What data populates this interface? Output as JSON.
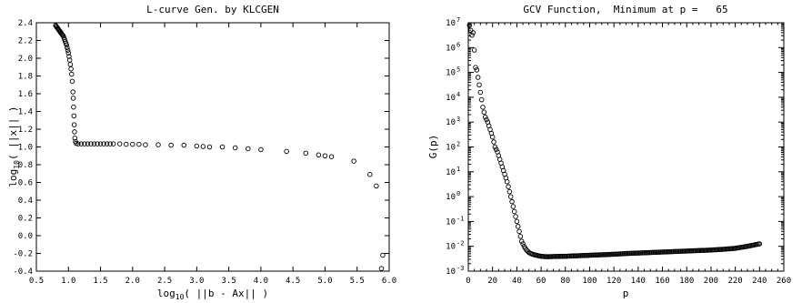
{
  "chart_data": [
    {
      "type": "scatter",
      "title": "L-curve Gen. by KLCGEN",
      "xlabel_prefix": "log",
      "xlabel_sub": "10",
      "xlabel_suffix": "( ||b - Ax|| )",
      "ylabel_prefix": "log",
      "ylabel_sub": "10",
      "ylabel_suffix": "( ||x|| )",
      "xlim": [
        0.5,
        6.0
      ],
      "ylim": [
        -0.4,
        2.4
      ],
      "x_ticks": [
        "0.5",
        "1.0",
        "1.5",
        "2.0",
        "2.5",
        "3.0",
        "3.5",
        "4.0",
        "4.5",
        "5.0",
        "5.5",
        "6.0"
      ],
      "y_ticks": [
        "-0.4",
        "-0.2",
        "0.0",
        "0.2",
        "0.4",
        "0.6",
        "0.8",
        "1.0",
        "1.2",
        "1.4",
        "1.6",
        "1.8",
        "2.0",
        "2.2",
        "2.4"
      ],
      "grid": false,
      "marker": "open-circle",
      "points": [
        [
          0.8,
          2.37
        ],
        [
          0.81,
          2.36
        ],
        [
          0.82,
          2.35
        ],
        [
          0.83,
          2.34
        ],
        [
          0.84,
          2.33
        ],
        [
          0.85,
          2.32
        ],
        [
          0.86,
          2.31
        ],
        [
          0.87,
          2.3
        ],
        [
          0.88,
          2.29
        ],
        [
          0.89,
          2.28
        ],
        [
          0.9,
          2.27
        ],
        [
          0.91,
          2.26
        ],
        [
          0.92,
          2.25
        ],
        [
          0.93,
          2.23
        ],
        [
          0.94,
          2.21
        ],
        [
          0.95,
          2.19
        ],
        [
          0.96,
          2.17
        ],
        [
          0.97,
          2.15
        ],
        [
          0.98,
          2.12
        ],
        [
          0.99,
          2.09
        ],
        [
          1.0,
          2.06
        ],
        [
          1.01,
          2.02
        ],
        [
          1.02,
          1.98
        ],
        [
          1.03,
          1.93
        ],
        [
          1.04,
          1.88
        ],
        [
          1.05,
          1.82
        ],
        [
          1.06,
          1.74
        ],
        [
          1.07,
          1.62
        ],
        [
          1.075,
          1.55
        ],
        [
          1.08,
          1.45
        ],
        [
          1.085,
          1.35
        ],
        [
          1.09,
          1.25
        ],
        [
          1.095,
          1.17
        ],
        [
          1.1,
          1.1
        ],
        [
          1.11,
          1.06
        ],
        [
          1.12,
          1.04
        ],
        [
          1.15,
          1.035
        ],
        [
          1.2,
          1.035
        ],
        [
          1.25,
          1.035
        ],
        [
          1.3,
          1.035
        ],
        [
          1.35,
          1.035
        ],
        [
          1.4,
          1.035
        ],
        [
          1.45,
          1.035
        ],
        [
          1.5,
          1.035
        ],
        [
          1.55,
          1.035
        ],
        [
          1.6,
          1.035
        ],
        [
          1.65,
          1.035
        ],
        [
          1.7,
          1.035
        ],
        [
          1.8,
          1.035
        ],
        [
          1.9,
          1.03
        ],
        [
          2.0,
          1.03
        ],
        [
          2.1,
          1.03
        ],
        [
          2.2,
          1.025
        ],
        [
          2.4,
          1.025
        ],
        [
          2.6,
          1.02
        ],
        [
          2.8,
          1.02
        ],
        [
          3.0,
          1.01
        ],
        [
          3.1,
          1.005
        ],
        [
          3.2,
          1.0
        ],
        [
          3.4,
          1.0
        ],
        [
          3.6,
          0.99
        ],
        [
          3.8,
          0.98
        ],
        [
          4.0,
          0.97
        ],
        [
          4.4,
          0.95
        ],
        [
          4.7,
          0.93
        ],
        [
          4.9,
          0.91
        ],
        [
          5.0,
          0.9
        ],
        [
          5.1,
          0.89
        ],
        [
          5.45,
          0.84
        ],
        [
          5.7,
          0.69
        ],
        [
          5.8,
          0.56
        ],
        [
          5.9,
          -0.22
        ],
        [
          5.88,
          -0.37
        ]
      ]
    },
    {
      "type": "scatter",
      "title": "GCV Function,  Minimum at p =   65",
      "xlabel": "p",
      "ylabel": "G(p)",
      "xlim": [
        0,
        260
      ],
      "ylim_log10": [
        -3,
        7
      ],
      "y_scale": "log",
      "x_ticks": [
        "0",
        "20",
        "40",
        "60",
        "80",
        "100",
        "120",
        "140",
        "160",
        "180",
        "200",
        "220",
        "240",
        "260"
      ],
      "y_tick_base": "10",
      "y_tick_exponents": [
        "-3",
        "-2",
        "-1",
        "0",
        "1",
        "2",
        "3",
        "4",
        "5",
        "6",
        "7"
      ],
      "grid": false,
      "marker": "open-circle",
      "points_log10": [
        [
          1,
          6.9
        ],
        [
          2,
          6.7
        ],
        [
          3,
          6.5
        ],
        [
          4,
          6.6
        ],
        [
          5,
          5.9
        ],
        [
          6,
          5.2
        ],
        [
          7,
          5.1
        ],
        [
          8,
          4.8
        ],
        [
          9,
          4.5
        ],
        [
          10,
          4.2
        ],
        [
          11,
          3.9
        ],
        [
          12,
          3.6
        ],
        [
          14,
          3.2
        ],
        [
          16,
          3.0
        ],
        [
          18,
          2.7
        ],
        [
          20,
          2.4
        ],
        [
          22,
          2.0
        ],
        [
          24,
          1.8
        ],
        [
          26,
          1.5
        ],
        [
          28,
          1.2
        ],
        [
          30,
          0.9
        ],
        [
          32,
          0.6
        ],
        [
          34,
          0.2
        ],
        [
          36,
          -0.2
        ],
        [
          38,
          -0.6
        ],
        [
          40,
          -1.0
        ],
        [
          42,
          -1.4
        ],
        [
          44,
          -1.8
        ],
        [
          46,
          -2.0
        ],
        [
          48,
          -2.15
        ],
        [
          50,
          -2.25
        ],
        [
          52,
          -2.3
        ],
        [
          55,
          -2.35
        ],
        [
          60,
          -2.4
        ],
        [
          65,
          -2.42
        ],
        [
          70,
          -2.41
        ],
        [
          80,
          -2.4
        ],
        [
          90,
          -2.38
        ],
        [
          100,
          -2.36
        ],
        [
          110,
          -2.34
        ],
        [
          120,
          -2.32
        ],
        [
          130,
          -2.29
        ],
        [
          140,
          -2.27
        ],
        [
          150,
          -2.25
        ],
        [
          160,
          -2.23
        ],
        [
          170,
          -2.21
        ],
        [
          180,
          -2.19
        ],
        [
          190,
          -2.17
        ],
        [
          200,
          -2.15
        ],
        [
          210,
          -2.12
        ],
        [
          220,
          -2.08
        ],
        [
          225,
          -2.04
        ],
        [
          230,
          -2.0
        ],
        [
          235,
          -1.95
        ],
        [
          240,
          -1.9
        ]
      ]
    }
  ]
}
